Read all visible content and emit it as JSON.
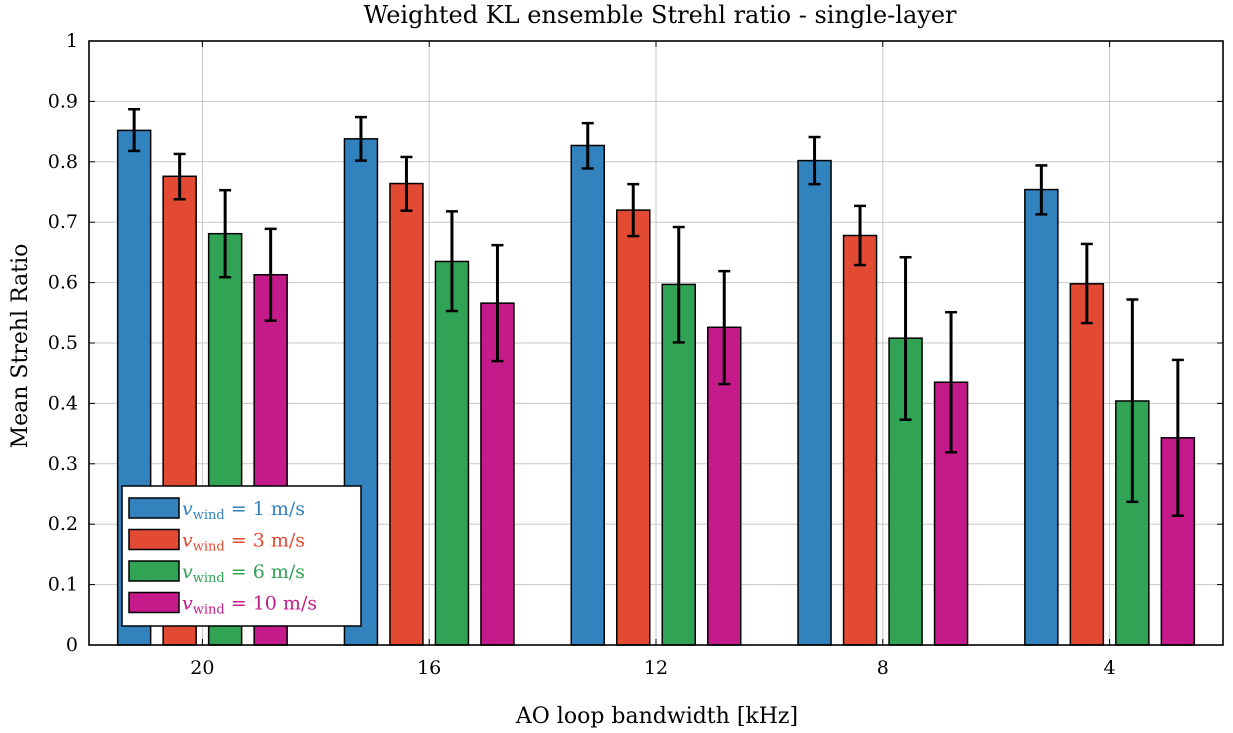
{
  "chart_data": {
    "type": "bar",
    "title": "Weighted KL ensemble Strehl ratio - single-layer",
    "xlabel": "AO loop bandwidth [kHz]",
    "ylabel": "Mean Strehl Ratio",
    "categories": [
      "20",
      "16",
      "12",
      "8",
      "4"
    ],
    "ylim": [
      0,
      1
    ],
    "yticks": [
      "0",
      "0.1",
      "0.2",
      "0.3",
      "0.4",
      "0.5",
      "0.6",
      "0.7",
      "0.8",
      "0.9",
      "1"
    ],
    "grid": true,
    "legend_position": "bottom-left",
    "error_bars": true,
    "series": [
      {
        "name": "v_wind = 1 m/s",
        "legend_var": "v",
        "legend_sub": "wind",
        "legend_rest": " = 1 m/s",
        "color": "#3182bd",
        "values": [
          0.852,
          0.838,
          0.827,
          0.802,
          0.754
        ],
        "err_low": [
          0.818,
          0.802,
          0.789,
          0.763,
          0.713
        ],
        "err_high": [
          0.887,
          0.874,
          0.864,
          0.841,
          0.794
        ]
      },
      {
        "name": "v_wind = 3 m/s",
        "legend_var": "v",
        "legend_sub": "wind",
        "legend_rest": " = 3 m/s",
        "color": "#e34a33",
        "values": [
          0.776,
          0.764,
          0.72,
          0.678,
          0.598
        ],
        "err_low": [
          0.738,
          0.719,
          0.677,
          0.629,
          0.533
        ],
        "err_high": [
          0.813,
          0.808,
          0.763,
          0.727,
          0.664
        ]
      },
      {
        "name": "v_wind = 6 m/s",
        "legend_var": "v",
        "legend_sub": "wind",
        "legend_rest": " = 6 m/s",
        "color": "#31a354",
        "values": [
          0.681,
          0.635,
          0.597,
          0.508,
          0.404
        ],
        "err_low": [
          0.609,
          0.553,
          0.501,
          0.373,
          0.237
        ],
        "err_high": [
          0.753,
          0.718,
          0.692,
          0.642,
          0.572
        ]
      },
      {
        "name": "v_wind = 10 m/s",
        "legend_var": "v",
        "legend_sub": "wind",
        "legend_rest": " = 10 m/s",
        "color": "#c51b8a",
        "values": [
          0.613,
          0.566,
          0.526,
          0.435,
          0.343
        ],
        "err_low": [
          0.537,
          0.47,
          0.432,
          0.319,
          0.214
        ],
        "err_high": [
          0.689,
          0.662,
          0.619,
          0.551,
          0.472
        ]
      }
    ]
  }
}
